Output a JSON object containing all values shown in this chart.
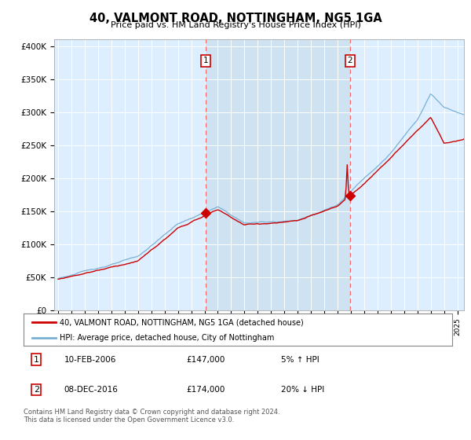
{
  "title": "40, VALMONT ROAD, NOTTINGHAM, NG5 1GA",
  "subtitle": "Price paid vs. HM Land Registry's House Price Index (HPI)",
  "ylabel_ticks": [
    "£0",
    "£50K",
    "£100K",
    "£150K",
    "£200K",
    "£250K",
    "£300K",
    "£350K",
    "£400K"
  ],
  "ytick_vals": [
    0,
    50000,
    100000,
    150000,
    200000,
    250000,
    300000,
    350000,
    400000
  ],
  "ylim": [
    0,
    410000
  ],
  "xlim_start": 1994.7,
  "xlim_end": 2025.5,
  "sale1_x": 2006.1,
  "sale1_price": 147000,
  "sale2_x": 2016.92,
  "sale2_price": 174000,
  "red_line_color": "#cc0000",
  "blue_line_color": "#7ab0d4",
  "dashed_line_color": "#ff6666",
  "background_color": "#ddeeff",
  "shade_color": "#cce0f0",
  "legend_label1": "40, VALMONT ROAD, NOTTINGHAM, NG5 1GA (detached house)",
  "legend_label2": "HPI: Average price, detached house, City of Nottingham",
  "footnote": "Contains HM Land Registry data © Crown copyright and database right 2024.\nThis data is licensed under the Open Government Licence v3.0."
}
